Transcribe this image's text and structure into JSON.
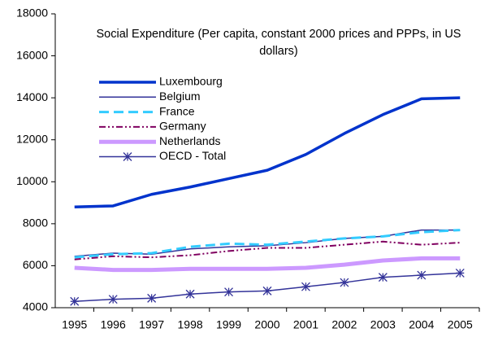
{
  "chart_data": {
    "type": "line",
    "title": "Social Expenditure (Per capita, constant 2000 prices and PPPs, in US dollars)",
    "categories": [
      "1995",
      "1996",
      "1997",
      "1998",
      "1999",
      "2000",
      "2001",
      "2002",
      "2003",
      "2004",
      "2005"
    ],
    "series": [
      {
        "name": "Luxembourg",
        "color": "#0033cc",
        "width": 3.5,
        "values": [
          8800,
          8850,
          9400,
          9750,
          10150,
          10550,
          11300,
          12300,
          13200,
          13950,
          14000
        ]
      },
      {
        "name": "Belgium",
        "color": "#333399",
        "width": 1.5,
        "values": [
          6450,
          6600,
          6550,
          6800,
          6900,
          6950,
          7100,
          7300,
          7400,
          7700,
          7700
        ]
      },
      {
        "name": "France",
        "color": "#33ccff",
        "width": 3,
        "dash": "12 6",
        "values": [
          6400,
          6550,
          6600,
          6900,
          7050,
          7000,
          7150,
          7300,
          7400,
          7600,
          7700
        ]
      },
      {
        "name": "Germany",
        "color": "#800060",
        "width": 2,
        "dash": "8 3 2 3 2 3",
        "values": [
          6300,
          6450,
          6400,
          6500,
          6700,
          6850,
          6850,
          7000,
          7150,
          7000,
          7100
        ]
      },
      {
        "name": "Netherlands",
        "color": "#cc99ff",
        "width": 5,
        "values": [
          5900,
          5800,
          5800,
          5850,
          5850,
          5850,
          5900,
          6050,
          6250,
          6350,
          6350
        ]
      },
      {
        "name": "OECD - Total",
        "color": "#333399",
        "width": 1.5,
        "marker": "star",
        "values": [
          4300,
          4400,
          4450,
          4650,
          4750,
          4800,
          5000,
          5200,
          5450,
          5550,
          5650
        ]
      }
    ],
    "ylim": [
      4000,
      18000
    ],
    "yticks": [
      4000,
      6000,
      8000,
      10000,
      12000,
      14000,
      16000,
      18000
    ],
    "grid": false
  }
}
